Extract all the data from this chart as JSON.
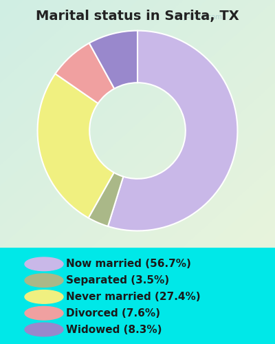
{
  "title": "Marital status in Sarita, TX",
  "slices": [
    56.7,
    3.5,
    27.4,
    7.6,
    8.3
  ],
  "labels": [
    "Now married (56.7%)",
    "Separated (3.5%)",
    "Never married (27.4%)",
    "Divorced (7.6%)",
    "Widowed (8.3%)"
  ],
  "colors": [
    "#c9b8e8",
    "#aab888",
    "#f0f080",
    "#f0a0a0",
    "#9988cc"
  ],
  "start_angle": 90,
  "bg_color": "#00e8e8",
  "chart_bg_color_tl": "#c8e8d0",
  "chart_bg_color_br": "#e8f4e0",
  "watermark": "City-Data.com",
  "title_fontsize": 14,
  "legend_fontsize": 11,
  "donut_width": 0.52
}
